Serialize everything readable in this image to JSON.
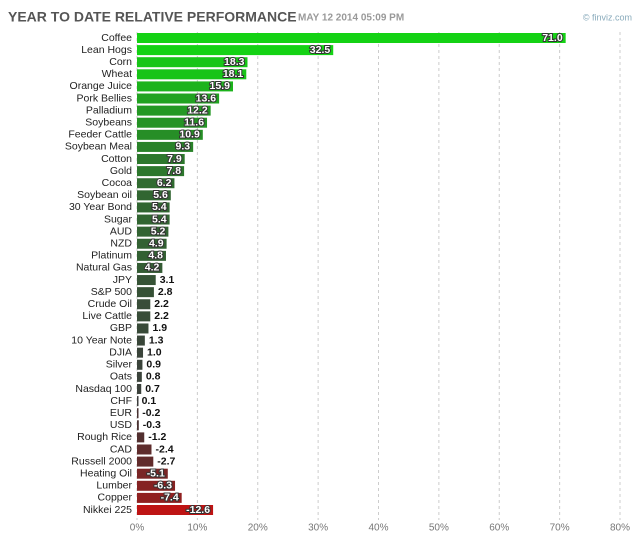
{
  "chart_data": {
    "type": "bar",
    "orientation": "horizontal",
    "title": "YEAR TO DATE RELATIVE PERFORMANCE",
    "subtitle": "MAY 12 2014 05:09 PM",
    "source": "© finviz.com",
    "categories": [
      "Coffee",
      "Lean Hogs",
      "Corn",
      "Wheat",
      "Orange Juice",
      "Pork Bellies",
      "Palladium",
      "Soybeans",
      "Feeder Cattle",
      "Soybean Meal",
      "Cotton",
      "Gold",
      "Cocoa",
      "Soybean oil",
      "30 Year Bond",
      "Sugar",
      "AUD",
      "NZD",
      "Platinum",
      "Natural Gas",
      "JPY",
      "S&P 500",
      "Crude Oil",
      "Live Cattle",
      "GBP",
      "10 Year Note",
      "DJIA",
      "Silver",
      "Oats",
      "Nasdaq 100",
      "CHF",
      "EUR",
      "USD",
      "Rough Rice",
      "CAD",
      "Russell 2000",
      "Heating Oil",
      "Lumber",
      "Copper",
      "Nikkei 225"
    ],
    "values": [
      71.0,
      32.5,
      18.3,
      18.1,
      15.9,
      13.6,
      12.2,
      11.6,
      10.9,
      9.3,
      7.9,
      7.8,
      6.2,
      5.6,
      5.4,
      5.4,
      5.2,
      4.9,
      4.8,
      4.2,
      3.1,
      2.8,
      2.2,
      2.2,
      1.9,
      1.3,
      1.0,
      0.9,
      0.8,
      0.7,
      0.1,
      -0.2,
      -0.3,
      -1.2,
      -2.4,
      -2.7,
      -5.1,
      -6.3,
      -7.4,
      -12.6
    ],
    "value_labels": [
      "71.0",
      "32.5",
      "18.3",
      "18.1",
      "15.9",
      "13.6",
      "12.2",
      "11.6",
      "10.9",
      "9.3",
      "7.9",
      "7.8",
      "6.2",
      "5.6",
      "5.4",
      "5.4",
      "5.2",
      "4.9",
      "4.8",
      "4.2",
      "3.1",
      "2.8",
      "2.2",
      "2.2",
      "1.9",
      "1.3",
      "1.0",
      "0.9",
      "0.8",
      "0.7",
      "0.1",
      "-0.2",
      "-0.3",
      "-1.2",
      "-2.4",
      "-2.7",
      "-5.1",
      "-6.3",
      "-7.4",
      "-12.6"
    ],
    "xlim": [
      0,
      80
    ],
    "xticks": [
      {
        "value": 0,
        "label": "0%"
      },
      {
        "value": 10,
        "label": "10%"
      },
      {
        "value": 20,
        "label": "20%"
      },
      {
        "value": 30,
        "label": "30%"
      },
      {
        "value": 40,
        "label": "40%"
      },
      {
        "value": 50,
        "label": "50%"
      },
      {
        "value": 60,
        "label": "60%"
      },
      {
        "value": 70,
        "label": "70%"
      },
      {
        "value": 80,
        "label": "80%"
      }
    ],
    "grid": true
  }
}
